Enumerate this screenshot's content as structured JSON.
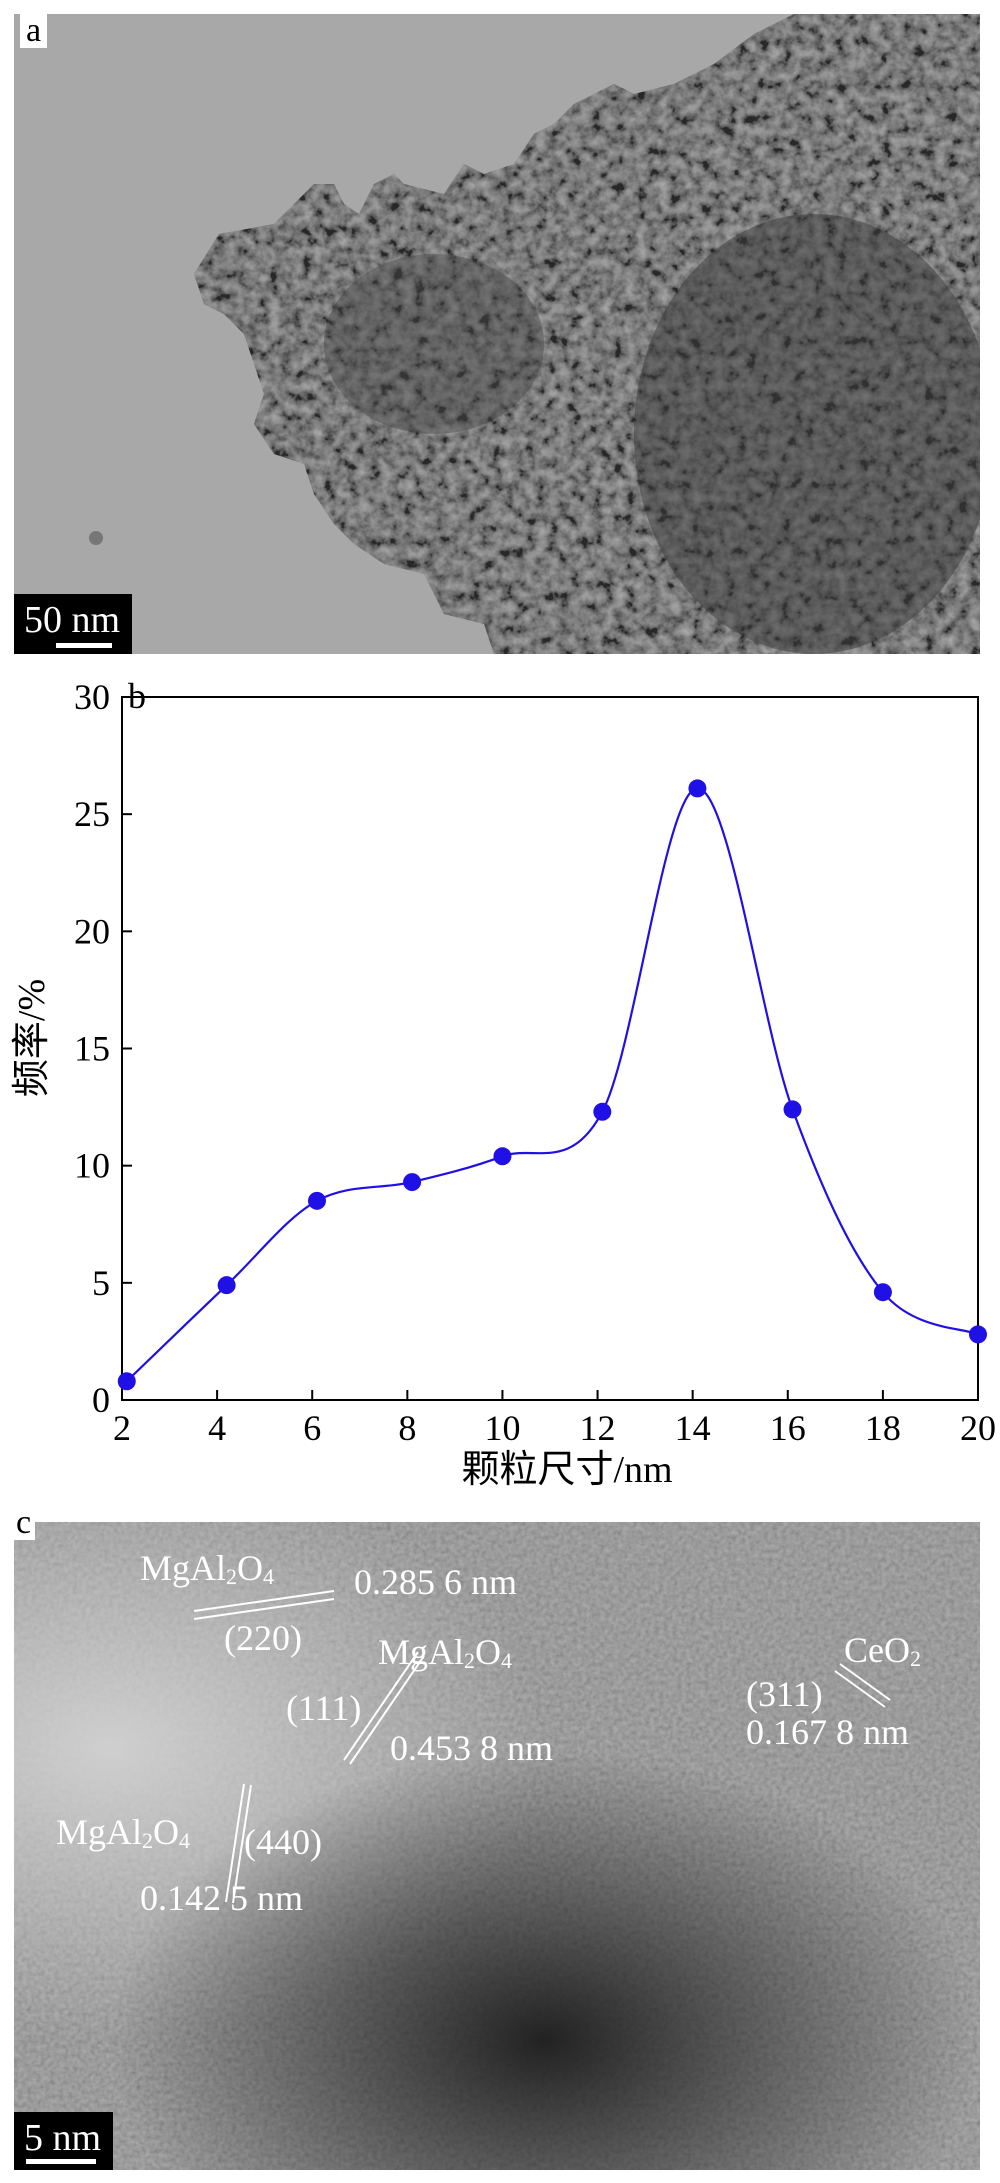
{
  "panels": {
    "a": {
      "letter": "a",
      "scale_bar": "50 nm"
    },
    "b": {
      "letter": "b"
    },
    "c": {
      "letter": "c",
      "scale_bar": "5 nm",
      "annotations": [
        {
          "phase": "MgAl2O4",
          "plane": "(220)",
          "spacing": "0.285 6 nm"
        },
        {
          "phase": "MgAl2O4",
          "plane": "(111)",
          "spacing": "0.453 8 nm"
        },
        {
          "phase": "MgAl2O4",
          "plane": "(440)",
          "spacing": "0.142 5 nm"
        },
        {
          "phase": "CeO2",
          "plane": "(311)",
          "spacing": "0.167 8 nm"
        }
      ]
    }
  },
  "chart_data": {
    "type": "line",
    "xlabel": "颗粒尺寸/nm",
    "ylabel": "频率/%",
    "xlim": [
      2,
      20
    ],
    "ylim": [
      0,
      30
    ],
    "xticks": [
      2,
      4,
      6,
      8,
      10,
      12,
      14,
      16,
      18,
      20
    ],
    "yticks": [
      0,
      5,
      10,
      15,
      20,
      25,
      30
    ],
    "grid": false,
    "series": [
      {
        "x": [
          2.1,
          4.2,
          6.1,
          8.1,
          10.0,
          12.1,
          14.1,
          16.1,
          18.0,
          20.0
        ],
        "values": [
          0.8,
          4.9,
          8.5,
          9.3,
          10.4,
          12.3,
          26.1,
          12.4,
          4.6,
          2.8
        ]
      }
    ],
    "color": "#1f10e6"
  }
}
